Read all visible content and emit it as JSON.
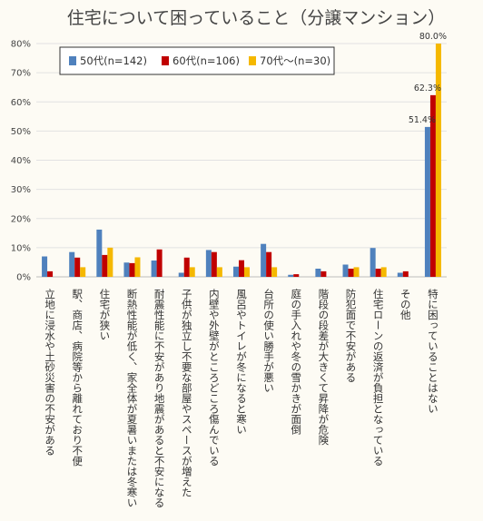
{
  "chart_data": {
    "type": "bar",
    "title": "住宅について困っていること（分譲マンション）",
    "xlabel": "",
    "ylabel": "",
    "ylim": [
      0,
      80
    ],
    "yticks": [
      "0%",
      "10%",
      "20%",
      "30%",
      "40%",
      "50%",
      "60%",
      "70%",
      "80%"
    ],
    "grid": true,
    "legend_position": "top-left",
    "categories": [
      "立地に浸水や土砂災害の不安がある",
      "駅、商店、病院等から離れており不便",
      "住宅が狭い",
      "断熱性能が低く、家全体が夏暑いまたは冬寒い",
      "耐震性能に不安があり地震があると不安になる",
      "子供が独立し不要な部屋やスペースが増えた",
      "内壁や外壁がところどころ傷んでいる",
      "風呂やトイレが冬になると寒い",
      "台所の使い勝手が悪い",
      "庭の手入れや冬の雪かきが面倒",
      "階段の段差が大きくて昇降が危険",
      "防犯面で不安がある",
      "住宅ローンの返済が負担となっている",
      "その他",
      "特に困っていることはない"
    ],
    "series": [
      {
        "name": "50代(n=142)",
        "color": "#4f81bd",
        "values": [
          7.0,
          8.5,
          16.2,
          4.9,
          5.6,
          1.4,
          9.2,
          3.5,
          11.3,
          0.7,
          2.8,
          4.2,
          9.9,
          1.4,
          51.4
        ]
      },
      {
        "name": "60代(n=106)",
        "color": "#c00000",
        "values": [
          1.9,
          6.6,
          7.5,
          4.7,
          9.4,
          6.6,
          8.5,
          5.7,
          8.5,
          0.9,
          1.9,
          2.8,
          2.8,
          1.9,
          62.3
        ]
      },
      {
        "name": "70代～(n=30)",
        "color": "#f5b800",
        "values": [
          0.0,
          3.3,
          10.0,
          6.7,
          0.0,
          3.3,
          3.3,
          3.3,
          3.3,
          0.0,
          0.0,
          3.3,
          3.3,
          0.0,
          80.0
        ]
      }
    ],
    "data_labels": [
      {
        "category_index": 14,
        "series_index": 0,
        "text": "51.4%"
      },
      {
        "category_index": 14,
        "series_index": 1,
        "text": "62.3%"
      },
      {
        "category_index": 14,
        "series_index": 2,
        "text": "80.0%"
      }
    ]
  }
}
